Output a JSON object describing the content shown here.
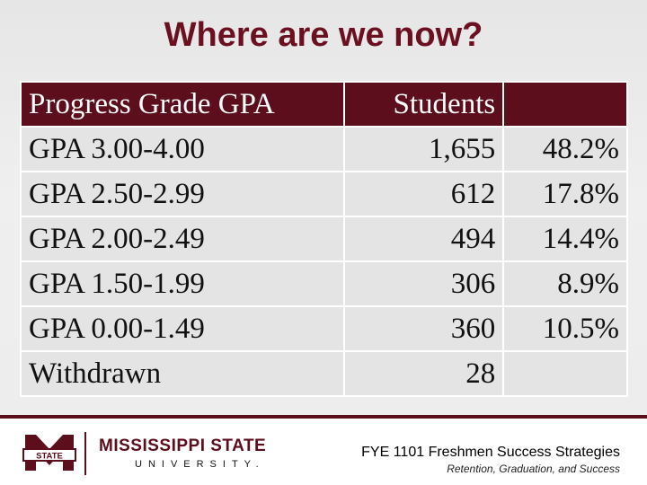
{
  "slide": {
    "title": "Where are we now?"
  },
  "table": {
    "headers": [
      "Progress Grade GPA",
      "Students",
      ""
    ],
    "rows": [
      {
        "label": "GPA 3.00-4.00",
        "students": "1,655",
        "percent": "48.2%"
      },
      {
        "label": "GPA 2.50-2.99",
        "students": "612",
        "percent": "17.8%"
      },
      {
        "label": "GPA 2.00-2.49",
        "students": "494",
        "percent": "14.4%"
      },
      {
        "label": "GPA 1.50-1.99",
        "students": "306",
        "percent": "8.9%"
      },
      {
        "label": "GPA 0.00-1.49",
        "students": "360",
        "percent": "10.5%"
      },
      {
        "label": "Withdrawn",
        "students": "28",
        "percent": ""
      }
    ]
  },
  "footer": {
    "logo_emblem_text": "STATE",
    "university_name": "MISSISSIPPI STATE",
    "university_sub": "UNIVERSITY.",
    "course": "FYE 1101 Freshmen Success Strategies",
    "tagline": "Retention, Graduation, and Success"
  },
  "colors": {
    "maroon": "#5d0e1d",
    "title": "#6b1020",
    "cell": "#e4e4e4"
  }
}
